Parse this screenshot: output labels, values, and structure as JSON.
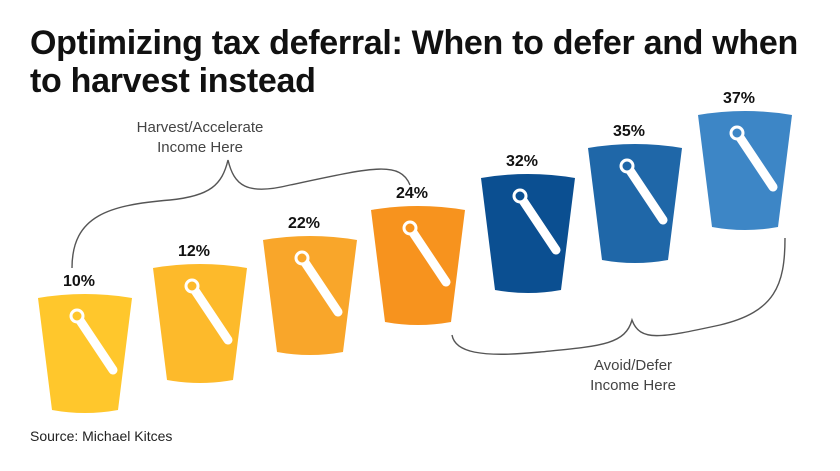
{
  "title": "Optimizing tax deferral: When to defer and when to harvest instead",
  "source": "Source: Michael Kitces",
  "annotations": {
    "harvest_line1": "Harvest/Accelerate",
    "harvest_line2": "Income Here",
    "avoid_line1": "Avoid/Defer",
    "avoid_line2": "Income Here"
  },
  "buckets": [
    {
      "label": "10%",
      "color": "#FFC72C",
      "group": "harvest"
    },
    {
      "label": "12%",
      "color": "#FDBA2B",
      "group": "harvest"
    },
    {
      "label": "22%",
      "color": "#F9A62A",
      "group": "harvest"
    },
    {
      "label": "24%",
      "color": "#F7931E",
      "group": "harvest"
    },
    {
      "label": "32%",
      "color": "#0B4F91",
      "group": "avoid"
    },
    {
      "label": "35%",
      "color": "#1F67A8",
      "group": "avoid"
    },
    {
      "label": "37%",
      "color": "#3D86C6",
      "group": "avoid"
    }
  ]
}
